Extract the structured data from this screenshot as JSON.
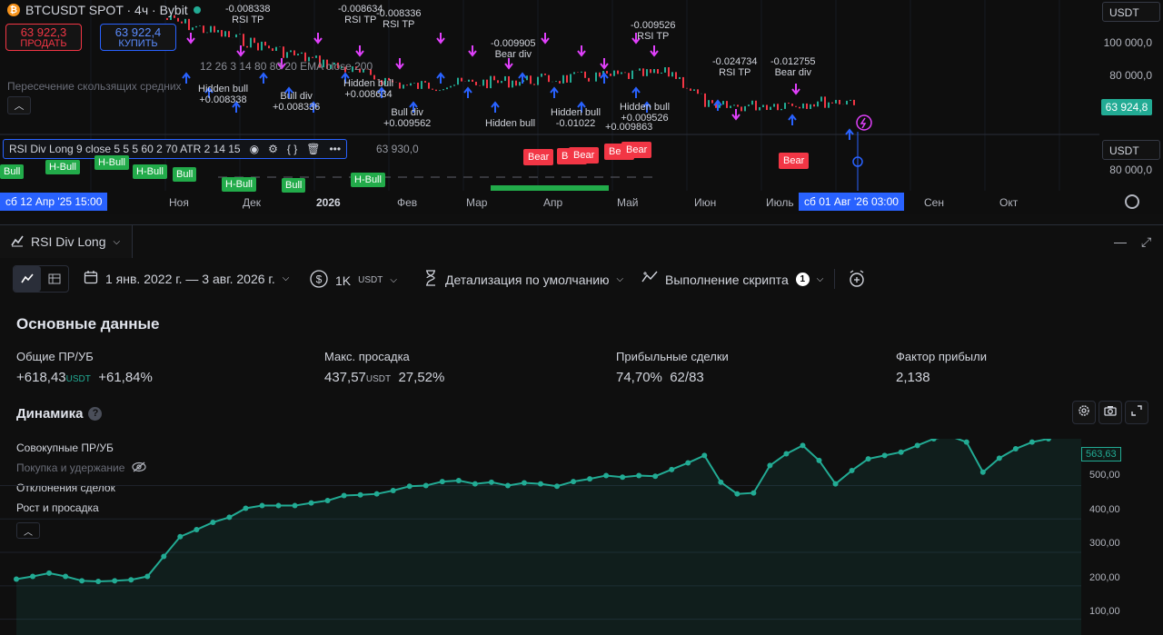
{
  "chart": {
    "symbol_title": "BTCUSDT SPOT · 4ч · Bybit",
    "sell_price": "63 922,3",
    "sell_label": "ПРОДАТЬ",
    "buy_price": "63 922,4",
    "buy_label": "КУПИТЬ",
    "currency": "USDT",
    "currency_lower": "USDT",
    "y_ticks": [
      "100 000,0",
      "80 000,0",
      "80 000,0"
    ],
    "last_price": "63 924,8",
    "ema_overlay_text": "Пересечение скользящих средних",
    "ema_params_text": "12 26 3 14 80 80 20 EMA close 200",
    "indicator_title": "RSI Div Long 9 close 5 5 5 60 2 70 ATR 2 14 15",
    "indicator_value": "63 930,0",
    "time_labels": [
      "Ноя",
      "Дек",
      "2026",
      "Фев",
      "Мар",
      "Апр",
      "Май",
      "Июн",
      "Июль",
      "Сен",
      "Окт"
    ],
    "time_range_start": "сб 12 Апр '25   15:00",
    "time_range_end": "сб 01 Авг '26   03:00",
    "signals": {
      "rsi_tp": "RSI TP",
      "bear_div": "Bear div",
      "bull_div": "Bull div",
      "hidden_bull": "Hidden bull",
      "bear": "Bear",
      "bull": "Bull",
      "h_bull": "H-Bull",
      "v1": "-0.008338",
      "v2": "-0.008634",
      "v3": "-0.008336",
      "v4": "-0.009526",
      "v5": "-0.024734",
      "v6": "-0.012755",
      "v7": "+0.008338",
      "v8": "+0.008336",
      "v9": "+0.008634",
      "v10": "+0.009562",
      "v11": "+0.009526",
      "v12": "+0.009863",
      "v13": "-0.009905",
      "v14": "-0.01022"
    }
  },
  "panel": {
    "tab_label": "RSI Div Long",
    "date_range": "1 янв. 2022 г. — 3 авг. 2026 г.",
    "capital": "1K",
    "capital_unit": "USDT",
    "detail_label": "Детализация по умолчанию",
    "script_exec_label": "Выполнение скрипта",
    "script_exec_count": "1",
    "section_title": "Основные данные",
    "metrics": [
      {
        "label": "Общие ПР/УБ",
        "value": "+618,43",
        "unit": "USDT",
        "extra": "+61,84%"
      },
      {
        "label": "Макс. просадка",
        "value": "437,57",
        "unit": "USDT",
        "extra": "27,52%"
      },
      {
        "label": "Прибыльные сделки",
        "value": "74,70%",
        "unit": "",
        "extra": "62/83"
      },
      {
        "label": "Фактор прибыли",
        "value": "2,138",
        "unit": "",
        "extra": ""
      }
    ],
    "dynamics_title": "Динамика",
    "legend": {
      "cumulative": "Совокупные ПР/УБ",
      "buy_hold": "Покупка и удержание",
      "trade_dev": "Отклонения сделок",
      "runup_drawdown": "Рост и просадка"
    },
    "equity_ticks": [
      "500,00",
      "400,00",
      "300,00",
      "200,00",
      "100,00"
    ],
    "equity_last": "563,63"
  },
  "chart_data": {
    "type": "line",
    "title": "",
    "xlabel": "",
    "ylabel": "",
    "ylim": [
      50,
      640
    ],
    "series": [
      {
        "name": "Совокупные ПР/УБ",
        "values": [
          220,
          228,
          238,
          228,
          215,
          213,
          215,
          218,
          228,
          288,
          347,
          368,
          390,
          405,
          432,
          440,
          440,
          440,
          448,
          455,
          470,
          472,
          475,
          485,
          498,
          500,
          512,
          515,
          505,
          510,
          500,
          508,
          505,
          498,
          512,
          520,
          530,
          525,
          530,
          528,
          548,
          568,
          590,
          510,
          475,
          478,
          560,
          595,
          620,
          575,
          505,
          545,
          580,
          590,
          600,
          620,
          640,
          648,
          630,
          540,
          582,
          610,
          630,
          640,
          655,
          663
        ]
      }
    ],
    "grid": true,
    "color": "#22ab94"
  },
  "colors": {
    "accent": "#2962ff",
    "positive": "#22ab94",
    "negative": "#f23645",
    "magenta": "#e040fb"
  }
}
